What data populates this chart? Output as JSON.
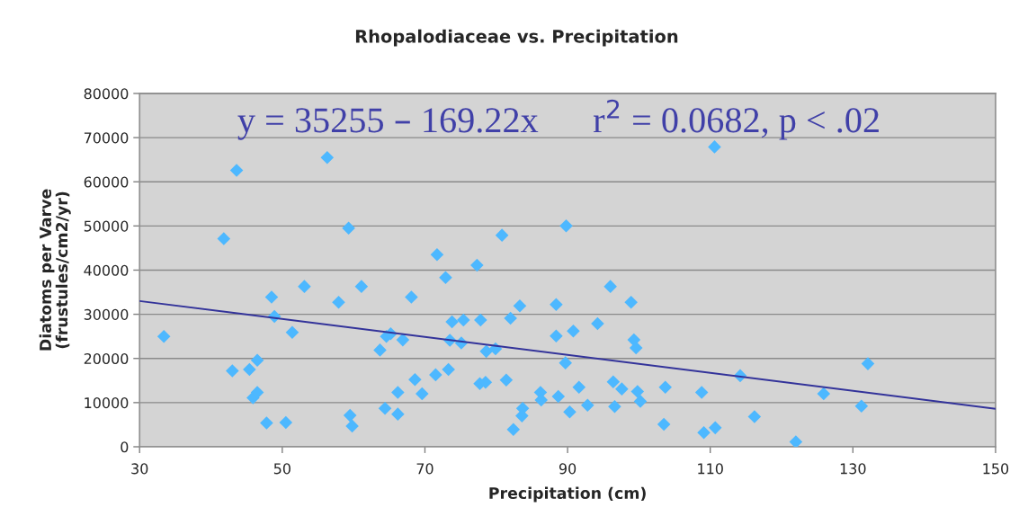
{
  "chart_data": {
    "type": "scatter",
    "title": "Rhopalodiaceae vs. Precipitation",
    "xlabel": "Precipitation (cm)",
    "ylabel": "Diatoms per Varve\n(frustules/cm2/yr)",
    "annotations": [
      "y = 35255 – 169.22x      r$^{2}$ = 0.0682, p < .02"
    ],
    "xlim": [
      30,
      150
    ],
    "xticks": [
      30,
      50,
      70,
      90,
      110,
      130,
      150
    ],
    "ylim": [
      0,
      80000
    ],
    "yticks": [
      0,
      10000,
      20000,
      30000,
      40000,
      50000,
      60000,
      70000,
      80000
    ],
    "grid": "y",
    "marker": "diamond",
    "series": [
      {
        "color": "#4db8ff",
        "x": [
          33.4,
          41.8,
          43.6,
          43.0,
          45.4,
          46.5,
          45.9,
          46.5,
          47.8,
          48.5,
          48.9,
          50.5,
          51.4,
          53.1,
          56.3,
          57.9,
          59.3,
          59.5,
          59.8,
          61.1,
          63.7,
          64.4,
          64.6,
          65.2,
          66.2,
          66.2,
          66.9,
          68.1,
          68.6,
          69.6,
          71.5,
          71.7,
          72.9,
          73.3,
          73.5,
          73.8,
          75.1,
          75.4,
          77.3,
          77.8,
          77.7,
          78.5,
          78.6,
          79.9,
          80.8,
          81.4,
          82.0,
          82.4,
          83.3,
          83.7,
          83.6,
          86.2,
          86.3,
          88.4,
          88.4,
          88.7,
          89.8,
          89.7,
          90.3,
          90.8,
          91.6,
          92.8,
          94.2,
          96.0,
          96.4,
          96.6,
          97.6,
          98.9,
          99.3,
          99.6,
          99.8,
          100.2,
          103.7,
          103.5,
          108.8,
          109.1,
          110.6,
          110.7,
          114.2,
          116.2,
          122.0,
          125.9,
          131.2,
          132.1
        ],
        "values": [
          25000,
          47100,
          62600,
          17200,
          17500,
          19600,
          11100,
          12300,
          5400,
          33900,
          29500,
          5500,
          25900,
          36300,
          65500,
          32700,
          49500,
          7100,
          4700,
          36300,
          21900,
          8700,
          25000,
          25600,
          12300,
          7400,
          24200,
          33900,
          15200,
          12000,
          16300,
          43500,
          38300,
          17500,
          24100,
          28300,
          23500,
          28700,
          41100,
          28700,
          14300,
          14600,
          21600,
          22200,
          47900,
          15100,
          29100,
          3900,
          31900,
          8700,
          7000,
          12300,
          10600,
          32200,
          25100,
          11400,
          50000,
          19000,
          7900,
          26200,
          13500,
          9400,
          27900,
          36300,
          14700,
          9100,
          13100,
          32700,
          24200,
          22400,
          12500,
          10300,
          13500,
          5100,
          12300,
          3200,
          67900,
          4300,
          16100,
          6800,
          1100,
          12000,
          9200,
          18800
        ]
      },
      {
        "type": "line",
        "color": "#33339a",
        "marker": "none",
        "line_style": "solid",
        "x": [
          30,
          150
        ],
        "values": [
          33000,
          8600
        ]
      }
    ]
  }
}
